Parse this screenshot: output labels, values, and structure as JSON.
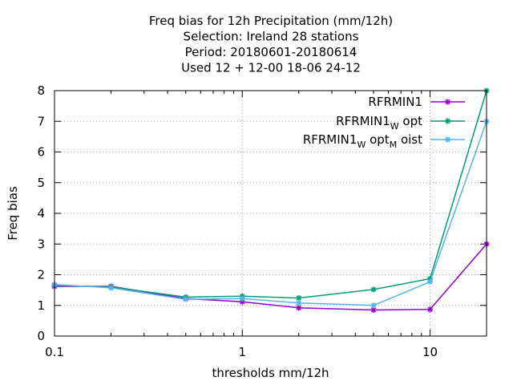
{
  "chart_data": {
    "type": "line",
    "title_lines": [
      "Freq bias  for 12h Precipitation (mm/12h)",
      "Selection: Ireland      28 stations",
      "Period: 20180601-20180614",
      "Used  12 + 12-00 18-06 24-12"
    ],
    "xlabel": "thresholds mm/12h",
    "ylabel": "Freq bias",
    "x_scale": "log",
    "xlim": [
      0.1,
      20
    ],
    "ylim": [
      0,
      8
    ],
    "x_ticks": [
      0.1,
      1,
      10
    ],
    "x_tick_labels": [
      "0.1",
      "1",
      "10"
    ],
    "y_ticks": [
      0,
      1,
      2,
      3,
      4,
      5,
      6,
      7,
      8
    ],
    "y_tick_labels": [
      "0",
      "1",
      "2",
      "3",
      "4",
      "5",
      "6",
      "7",
      "8"
    ],
    "grid": true,
    "legend_position": "top-right",
    "x": [
      0.1,
      0.2,
      0.5,
      1,
      2,
      5,
      10,
      20
    ],
    "series": [
      {
        "legend": {
          "parts": [
            {
              "text": "RFRMIN1",
              "sub": false
            }
          ]
        },
        "color": "#9400d3",
        "values": [
          1.62,
          1.62,
          1.22,
          1.12,
          0.92,
          0.85,
          0.87,
          3.0
        ]
      },
      {
        "legend": {
          "parts": [
            {
              "text": "RFRMIN1",
              "sub": false
            },
            {
              "text": "W",
              "sub": true
            },
            {
              "text": "opt",
              "sub": false
            }
          ]
        },
        "color": "#009e73",
        "values": [
          1.65,
          1.6,
          1.27,
          1.3,
          1.24,
          1.52,
          1.87,
          8.0
        ]
      },
      {
        "legend": {
          "parts": [
            {
              "text": "RFRMIN1",
              "sub": false
            },
            {
              "text": "W",
              "sub": true
            },
            {
              "text": "opt",
              "sub": false
            },
            {
              "text": "M",
              "sub": true
            },
            {
              "text": "oist",
              "sub": false
            }
          ]
        },
        "color": "#56b4e9",
        "values": [
          1.68,
          1.57,
          1.2,
          1.22,
          1.08,
          1.0,
          1.77,
          7.0
        ]
      }
    ]
  }
}
